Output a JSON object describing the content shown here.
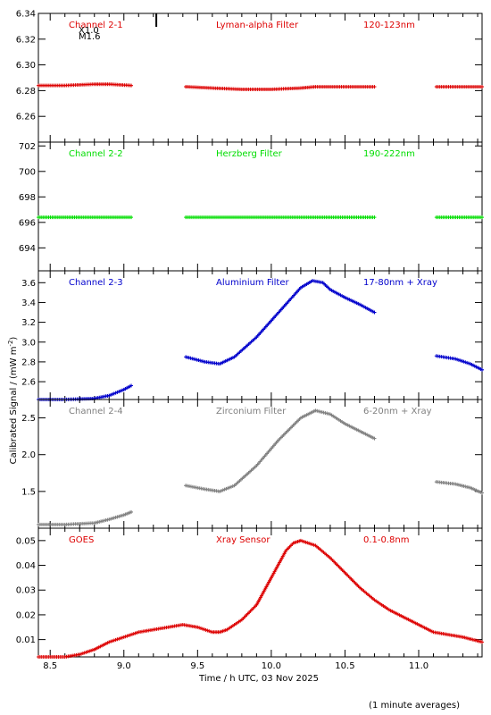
{
  "figure": {
    "xlabel": "Time / h UTC, 03 Nov 2025",
    "ylabel": "Calibrated Signal / (mW m",
    "ylabel_exponent": "-2",
    "ylabel_close": ")",
    "footer": "(1 minute averages)",
    "x_range": [
      8.42,
      11.43
    ],
    "x_ticks": [
      "8.5",
      "9.0",
      "9.5",
      "10.0",
      "10.5",
      "11.0"
    ],
    "flare_marker": {
      "x": 9.22,
      "class_line1": "X1.0",
      "class_line2": "M1.6"
    }
  },
  "chart_data": [
    {
      "type": "scatter",
      "color": "#dd0000",
      "header": {
        "left": "Channel 2-1",
        "center": "Lyman-alpha Filter",
        "right": "120-123nm"
      },
      "ylim": [
        6.24,
        6.34
      ],
      "yticks": [
        "6.26",
        "6.28",
        "6.30",
        "6.32",
        "6.34"
      ],
      "segments": [
        {
          "x": [
            8.42,
            8.6,
            8.8,
            8.9,
            9.05
          ],
          "y": [
            6.284,
            6.284,
            6.285,
            6.285,
            6.284
          ]
        },
        {
          "x": [
            9.42,
            9.6,
            9.8,
            10.0,
            10.2,
            10.3,
            10.5,
            10.7
          ],
          "y": [
            6.283,
            6.282,
            6.281,
            6.281,
            6.282,
            6.283,
            6.283,
            6.283
          ]
        },
        {
          "x": [
            11.12,
            11.25,
            11.43
          ],
          "y": [
            6.283,
            6.283,
            6.283
          ]
        }
      ]
    },
    {
      "type": "scatter",
      "color": "#00dd00",
      "header": {
        "left": "Channel 2-2",
        "center": "Herzberg Filter",
        "right": "190-222nm"
      },
      "ylim": [
        692.2,
        702.3
      ],
      "yticks": [
        "694",
        "696",
        "698",
        "700",
        "702"
      ],
      "segments": [
        {
          "x": [
            8.42,
            8.7,
            9.05
          ],
          "y": [
            696.4,
            696.4,
            696.4
          ]
        },
        {
          "x": [
            9.42,
            10.0,
            10.7
          ],
          "y": [
            696.4,
            696.4,
            696.4
          ]
        },
        {
          "x": [
            11.12,
            11.43
          ],
          "y": [
            696.4,
            696.4
          ]
        }
      ]
    },
    {
      "type": "scatter",
      "color": "#0000cc",
      "header": {
        "left": "Channel 2-3",
        "center": "Aluminium Filter",
        "right": "17-80nm + Xray"
      },
      "ylim": [
        2.42,
        3.72
      ],
      "yticks": [
        "2.6",
        "2.8",
        "3.0",
        "3.2",
        "3.4",
        "3.6"
      ],
      "segments": [
        {
          "x": [
            8.42,
            8.6,
            8.8,
            8.9,
            9.0,
            9.05
          ],
          "y": [
            2.42,
            2.42,
            2.43,
            2.46,
            2.52,
            2.56
          ]
        },
        {
          "x": [
            9.42,
            9.55,
            9.65,
            9.75,
            9.9,
            10.05,
            10.2,
            10.28,
            10.35,
            10.4,
            10.5,
            10.6,
            10.7
          ],
          "y": [
            2.85,
            2.8,
            2.78,
            2.85,
            3.05,
            3.3,
            3.55,
            3.62,
            3.6,
            3.53,
            3.45,
            3.38,
            3.3
          ]
        },
        {
          "x": [
            11.12,
            11.25,
            11.35,
            11.43
          ],
          "y": [
            2.86,
            2.83,
            2.78,
            2.72
          ]
        }
      ]
    },
    {
      "type": "scatter",
      "color": "#808080",
      "header": {
        "left": "Channel 2-4",
        "center": "Zirconium Filter",
        "right": "6-20nm + Xray"
      },
      "ylim": [
        1.0,
        2.75
      ],
      "yticks": [
        "1.5",
        "2.0",
        "2.5"
      ],
      "segments": [
        {
          "x": [
            8.42,
            8.6,
            8.8,
            8.9,
            9.0,
            9.05
          ],
          "y": [
            1.05,
            1.05,
            1.07,
            1.12,
            1.18,
            1.22
          ]
        },
        {
          "x": [
            9.42,
            9.55,
            9.65,
            9.75,
            9.9,
            10.05,
            10.2,
            10.3,
            10.4,
            10.5,
            10.6,
            10.7
          ],
          "y": [
            1.58,
            1.53,
            1.5,
            1.58,
            1.85,
            2.2,
            2.5,
            2.6,
            2.55,
            2.42,
            2.32,
            2.22
          ]
        },
        {
          "x": [
            11.12,
            11.25,
            11.35,
            11.43
          ],
          "y": [
            1.63,
            1.6,
            1.55,
            1.48
          ]
        }
      ]
    },
    {
      "type": "scatter",
      "color": "#dd0000",
      "header": {
        "left": "GOES",
        "center": "Xray Sensor",
        "right": "0.1-0.8nm"
      },
      "ylim": [
        0.003,
        0.055
      ],
      "yticks": [
        "0.01",
        "0.02",
        "0.03",
        "0.04",
        "0.05"
      ],
      "segments": [
        {
          "x": [
            8.42,
            8.5,
            8.6,
            8.7,
            8.8,
            8.9,
            9.0,
            9.1,
            9.2,
            9.3,
            9.4,
            9.5,
            9.6,
            9.65,
            9.7,
            9.8,
            9.9,
            10.0,
            10.1,
            10.15,
            10.2,
            10.3,
            10.4,
            10.5,
            10.6,
            10.7,
            10.8,
            10.9,
            11.0,
            11.1,
            11.2,
            11.3,
            11.43
          ],
          "y": [
            0.003,
            0.003,
            0.003,
            0.004,
            0.006,
            0.009,
            0.011,
            0.013,
            0.014,
            0.015,
            0.016,
            0.015,
            0.013,
            0.013,
            0.014,
            0.018,
            0.024,
            0.035,
            0.046,
            0.049,
            0.05,
            0.048,
            0.043,
            0.037,
            0.031,
            0.026,
            0.022,
            0.019,
            0.016,
            0.013,
            0.012,
            0.011,
            0.009
          ]
        }
      ]
    }
  ]
}
